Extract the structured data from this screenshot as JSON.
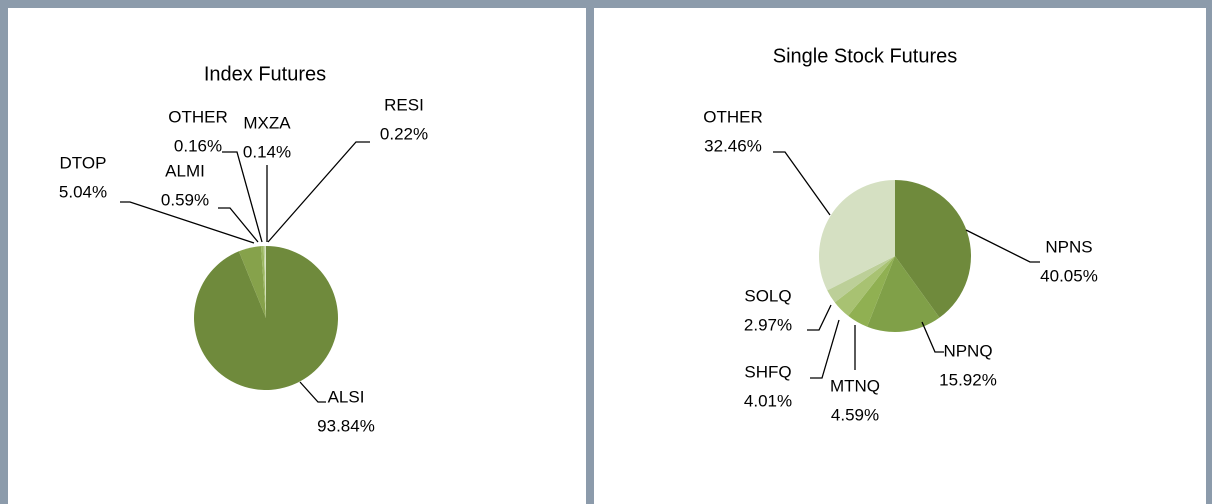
{
  "chart_data": [
    {
      "type": "pie",
      "title": "Index Futures",
      "categories": [
        "ALSI",
        "DTOP",
        "ALMI",
        "OTHER",
        "MXZA",
        "RESI"
      ],
      "values": [
        93.84,
        5.04,
        0.59,
        0.16,
        0.14,
        0.22
      ],
      "value_labels": [
        "93.84%",
        "5.04%",
        "0.59%",
        "0.16%",
        "0.14%",
        "0.22%"
      ],
      "colors": [
        "#6f8a3c",
        "#86a24b",
        "#9cb862",
        "#b2c88a",
        "#c6d6a6",
        "#d6e1c0"
      ]
    },
    {
      "type": "pie",
      "title": "Single Stock Futures",
      "categories": [
        "NPNS",
        "NPNQ",
        "MTNQ",
        "SHFQ",
        "SOLQ",
        "OTHER"
      ],
      "values": [
        40.05,
        15.92,
        4.59,
        4.01,
        2.97,
        32.46
      ],
      "value_labels": [
        "40.05%",
        "15.92%",
        "4.59%",
        "4.01%",
        "2.97%",
        "32.46%"
      ],
      "colors": [
        "#6f8a3c",
        "#80a048",
        "#90b052",
        "#a8c272",
        "#bccf98",
        "#d5e0c2"
      ]
    }
  ]
}
